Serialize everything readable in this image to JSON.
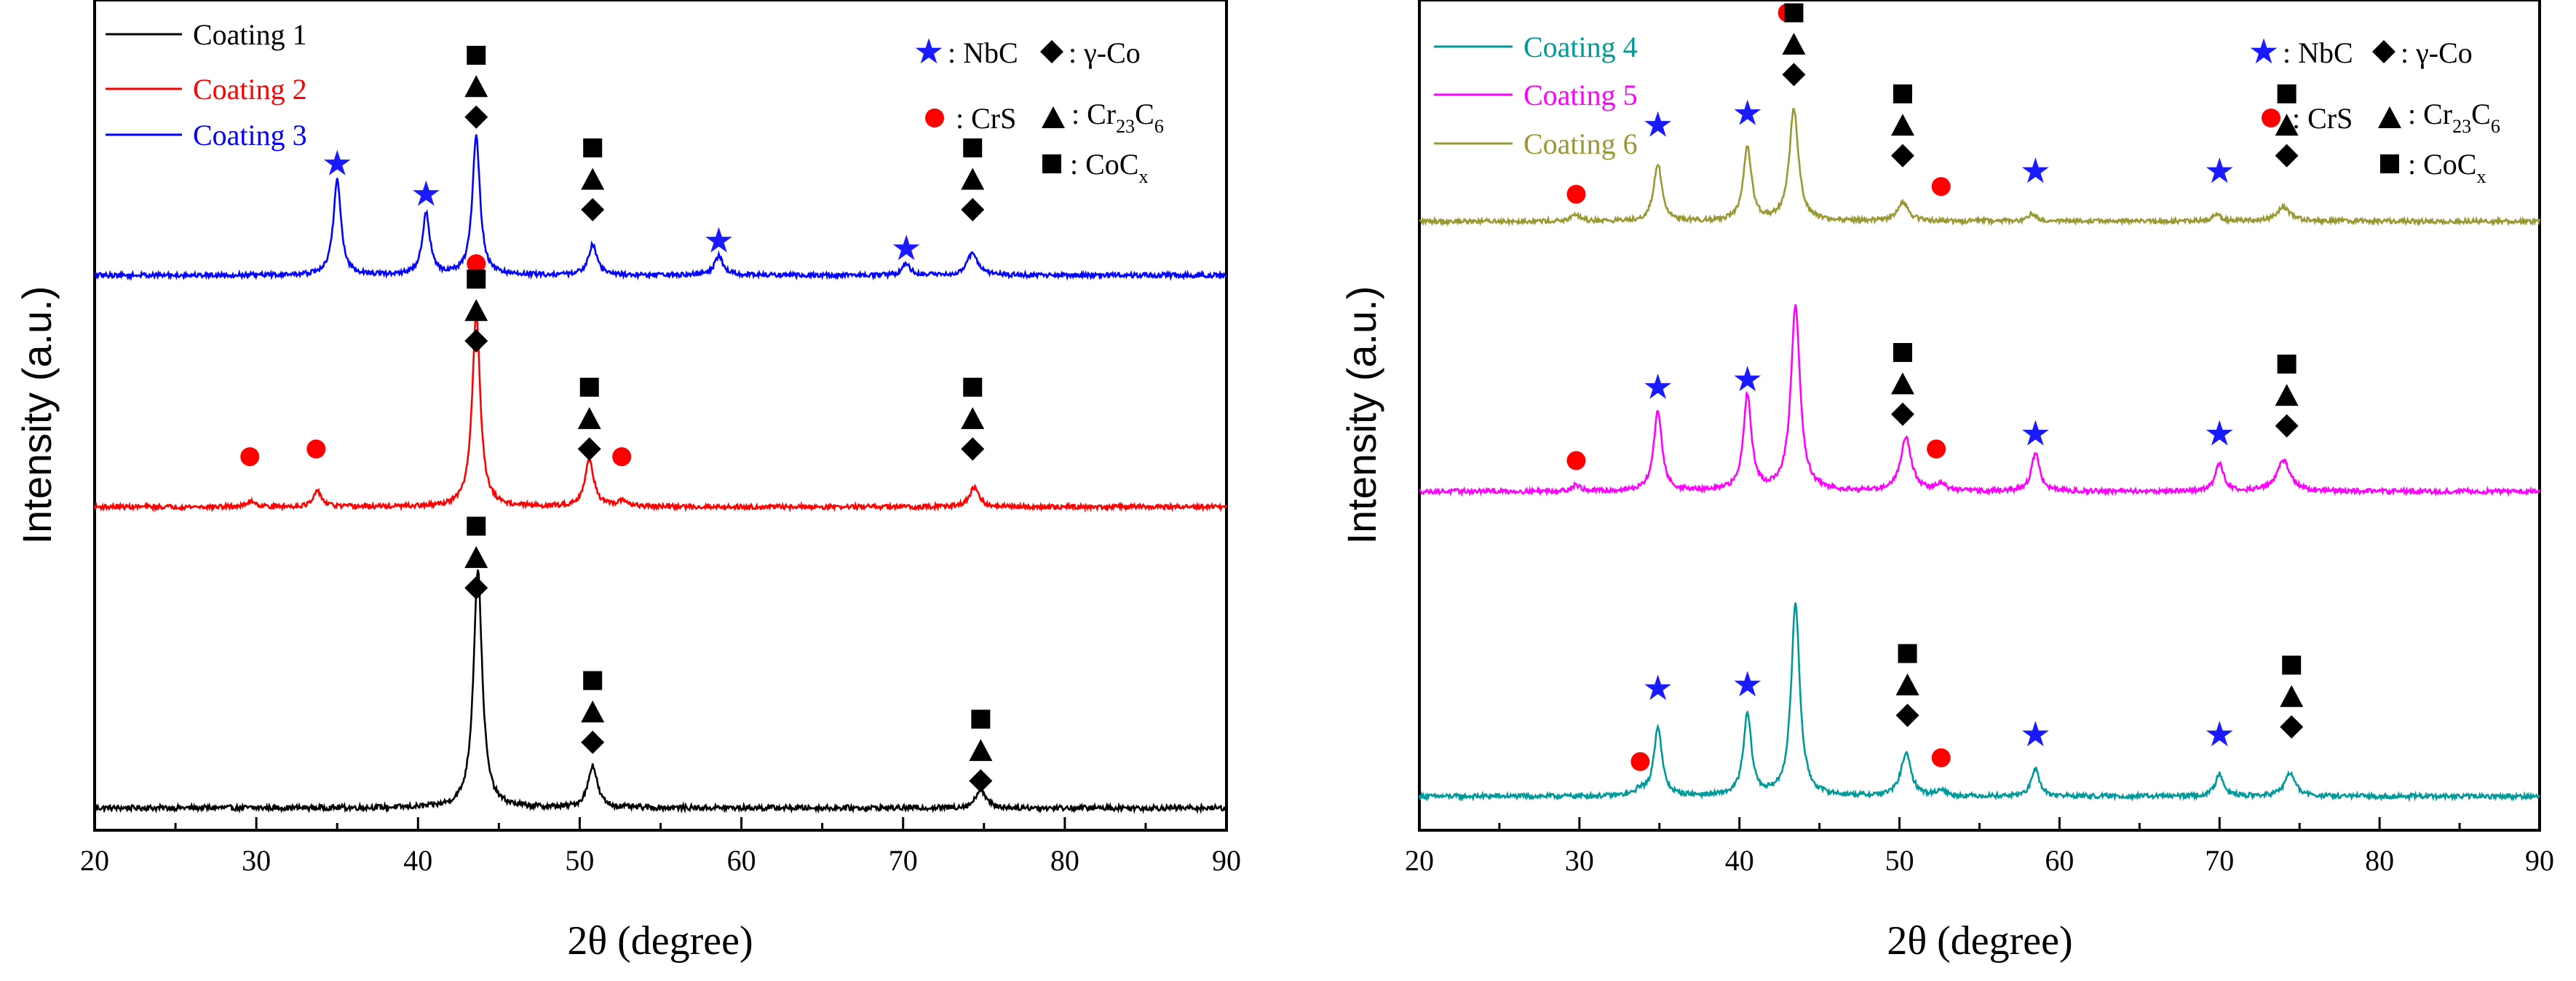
{
  "legend_text": {
    "nbc": ": NbC",
    "gco": ": γ-Co",
    "crs": ": CrS",
    "cr_prefix": ": Cr",
    "cr_sub1": "23",
    "cr_mid": "C",
    "cr_sub2": "6",
    "co_prefix": ": CoC",
    "co_sub": "x"
  },
  "chart_data": [
    {
      "type": "line",
      "panel": "left",
      "title": "",
      "xlabel": "2θ (degree)",
      "ylabel": "Intensity (a.u.)",
      "xlim": [
        20,
        90
      ],
      "ylim": [
        0,
        100
      ],
      "xticks": [
        20,
        30,
        40,
        50,
        60,
        70,
        80,
        90
      ],
      "x_tick_labels": [
        "20",
        "30",
        "40",
        "50",
        "60",
        "70",
        "80",
        "90"
      ],
      "y_ticks_shown": false,
      "legend_position": "top-left",
      "phase_legend_position": "top-right",
      "series": [
        {
          "name": "Coating 1",
          "color": "#000000",
          "baseline": 1.0,
          "noise": 0.35,
          "peaks": [
            {
              "x": 43.7,
              "height": 31,
              "width": 0.32
            },
            {
              "x": 50.8,
              "height": 5.5,
              "width": 0.34
            },
            {
              "x": 74.8,
              "height": 2.5,
              "width": 0.35
            }
          ]
        },
        {
          "name": "Coating 2",
          "color": "#ff0000",
          "baseline": 40.0,
          "noise": 0.3,
          "peaks": [
            {
              "x": 29.7,
              "height": 0.8,
              "width": 0.3
            },
            {
              "x": 33.8,
              "height": 2.0,
              "width": 0.3
            },
            {
              "x": 43.6,
              "height": 25,
              "width": 0.3
            },
            {
              "x": 50.6,
              "height": 6.0,
              "width": 0.34
            },
            {
              "x": 52.7,
              "height": 0.8,
              "width": 0.3
            },
            {
              "x": 74.4,
              "height": 2.5,
              "width": 0.34
            }
          ]
        },
        {
          "name": "Coating 3",
          "color": "#0000ff",
          "baseline": 70.0,
          "noise": 0.3,
          "peaks": [
            {
              "x": 35.0,
              "height": 12.5,
              "width": 0.28
            },
            {
              "x": 40.5,
              "height": 8.0,
              "width": 0.28
            },
            {
              "x": 43.6,
              "height": 18,
              "width": 0.28
            },
            {
              "x": 50.8,
              "height": 4.0,
              "width": 0.32
            },
            {
              "x": 58.6,
              "height": 2.5,
              "width": 0.32
            },
            {
              "x": 70.2,
              "height": 1.5,
              "width": 0.3
            },
            {
              "x": 74.3,
              "height": 3.0,
              "width": 0.38
            }
          ]
        }
      ],
      "phase_markers": [
        {
          "phase": "NbC",
          "symbol": "star",
          "color": "#1a1aff",
          "points": [
            [
              35.0,
              84.5
            ],
            [
              40.5,
              80.5
            ],
            [
              58.6,
              74.5
            ],
            [
              70.2,
              73.5
            ]
          ]
        },
        {
          "phase": "CrS",
          "symbol": "circle",
          "color": "#ff0000",
          "points": [
            [
              29.6,
              46.5
            ],
            [
              33.7,
              47.5
            ],
            [
              43.6,
              71.5
            ],
            [
              52.6,
              46.5
            ]
          ]
        },
        {
          "phase": "γ-Co",
          "symbol": "diamond",
          "color": "#000000",
          "points": [
            [
              43.6,
              90.5
            ],
            [
              50.8,
              78.5
            ],
            [
              74.3,
              78.5
            ],
            [
              43.6,
              61.5
            ],
            [
              50.6,
              47.5
            ],
            [
              74.3,
              47.5
            ],
            [
              43.6,
              29.5
            ],
            [
              50.8,
              9.5
            ],
            [
              74.8,
              4.5
            ]
          ]
        },
        {
          "phase": "Cr23C6",
          "symbol": "triangle",
          "color": "#000000",
          "points": [
            [
              43.6,
              94.5
            ],
            [
              50.8,
              82.5
            ],
            [
              74.3,
              82.5
            ],
            [
              43.6,
              65.5
            ],
            [
              50.6,
              51.5
            ],
            [
              74.3,
              51.5
            ],
            [
              43.6,
              33.5
            ],
            [
              50.8,
              13.5
            ],
            [
              74.8,
              8.5
            ]
          ]
        },
        {
          "phase": "CoCx",
          "symbol": "square",
          "color": "#000000",
          "points": [
            [
              43.6,
              98.5
            ],
            [
              50.8,
              86.5
            ],
            [
              74.3,
              86.5
            ],
            [
              43.6,
              69.5
            ],
            [
              50.6,
              55.5
            ],
            [
              74.3,
              55.5
            ],
            [
              43.6,
              37.5
            ],
            [
              50.8,
              17.5
            ],
            [
              74.8,
              12.5
            ]
          ]
        }
      ]
    },
    {
      "type": "line",
      "panel": "right",
      "title": "",
      "xlabel": "2θ (degree)",
      "ylabel": "Intensity (a.u.)",
      "xlim": [
        20,
        90
      ],
      "ylim": [
        0,
        100
      ],
      "xticks": [
        20,
        30,
        40,
        50,
        60,
        70,
        80,
        90
      ],
      "x_tick_labels": [
        "20",
        "30",
        "40",
        "50",
        "60",
        "70",
        "80",
        "90"
      ],
      "y_ticks_shown": false,
      "legend_position": "top-left",
      "phase_legend_position": "top-right",
      "series": [
        {
          "name": "Coating 4",
          "color": "#009999",
          "baseline": 2.5,
          "noise": 0.3,
          "peaks": [
            {
              "x": 33.8,
              "height": 0.8,
              "width": 0.3
            },
            {
              "x": 34.9,
              "height": 9.0,
              "width": 0.3
            },
            {
              "x": 40.5,
              "height": 10.5,
              "width": 0.3
            },
            {
              "x": 43.5,
              "height": 25,
              "width": 0.32
            },
            {
              "x": 50.4,
              "height": 5.5,
              "width": 0.38
            },
            {
              "x": 52.6,
              "height": 0.8,
              "width": 0.3
            },
            {
              "x": 58.5,
              "height": 3.5,
              "width": 0.3
            },
            {
              "x": 70.0,
              "height": 3.0,
              "width": 0.3
            },
            {
              "x": 74.4,
              "height": 3.0,
              "width": 0.4
            }
          ]
        },
        {
          "name": "Coating 5",
          "color": "#ff00ff",
          "baseline": 42.0,
          "noise": 0.3,
          "peaks": [
            {
              "x": 29.8,
              "height": 0.8,
              "width": 0.3
            },
            {
              "x": 34.9,
              "height": 10.5,
              "width": 0.3
            },
            {
              "x": 40.5,
              "height": 12.5,
              "width": 0.3
            },
            {
              "x": 43.5,
              "height": 24,
              "width": 0.34
            },
            {
              "x": 50.4,
              "height": 7.0,
              "width": 0.4
            },
            {
              "x": 52.6,
              "height": 1.0,
              "width": 0.3
            },
            {
              "x": 58.5,
              "height": 5.0,
              "width": 0.3
            },
            {
              "x": 70.0,
              "height": 3.5,
              "width": 0.32
            },
            {
              "x": 74.0,
              "height": 4.0,
              "width": 0.5
            }
          ]
        },
        {
          "name": "Coating 6",
          "color": "#999933",
          "baseline": 77.0,
          "noise": 0.3,
          "peaks": [
            {
              "x": 29.8,
              "height": 0.8,
              "width": 0.3
            },
            {
              "x": 34.9,
              "height": 7.5,
              "width": 0.3
            },
            {
              "x": 40.5,
              "height": 9.5,
              "width": 0.3
            },
            {
              "x": 43.4,
              "height": 14.5,
              "width": 0.34
            },
            {
              "x": 50.2,
              "height": 2.5,
              "width": 0.4
            },
            {
              "x": 58.3,
              "height": 1.0,
              "width": 0.3
            },
            {
              "x": 69.8,
              "height": 1.0,
              "width": 0.3
            },
            {
              "x": 74.0,
              "height": 1.8,
              "width": 0.5
            }
          ]
        }
      ],
      "phase_markers": [
        {
          "phase": "NbC",
          "symbol": "star",
          "color": "#1a1aff",
          "points": [
            [
              34.9,
              16.5
            ],
            [
              40.5,
              17.0
            ],
            [
              58.5,
              10.5
            ],
            [
              70.0,
              10.5
            ],
            [
              34.9,
              55.5
            ],
            [
              40.5,
              56.5
            ],
            [
              58.5,
              49.5
            ],
            [
              70.0,
              49.5
            ],
            [
              34.9,
              89.5
            ],
            [
              40.5,
              91.0
            ],
            [
              58.5,
              83.5
            ],
            [
              70.0,
              83.5
            ]
          ]
        },
        {
          "phase": "CrS",
          "symbol": "circle",
          "color": "#ff0000",
          "points": [
            [
              33.8,
              7.0
            ],
            [
              52.6,
              7.5
            ],
            [
              29.8,
              46.0
            ],
            [
              52.3,
              47.5
            ],
            [
              29.8,
              80.5
            ],
            [
              52.6,
              81.5
            ],
            [
              43.0,
              104.0
            ]
          ]
        },
        {
          "phase": "γ-Co",
          "symbol": "diamond",
          "color": "#000000",
          "points": [
            [
              50.5,
              13.0
            ],
            [
              74.5,
              11.5
            ],
            [
              50.2,
              52.0
            ],
            [
              74.2,
              50.5
            ],
            [
              43.4,
              96.0
            ],
            [
              50.2,
              85.5
            ],
            [
              74.2,
              85.5
            ]
          ]
        },
        {
          "phase": "Cr23C6",
          "symbol": "triangle",
          "color": "#000000",
          "points": [
            [
              50.5,
              17.0
            ],
            [
              74.5,
              15.5
            ],
            [
              50.2,
              56.0
            ],
            [
              74.2,
              54.5
            ],
            [
              43.4,
              100.0
            ],
            [
              50.2,
              89.5
            ],
            [
              74.2,
              89.5
            ]
          ]
        },
        {
          "phase": "CoCx",
          "symbol": "square",
          "color": "#000000",
          "points": [
            [
              50.5,
              21.0
            ],
            [
              74.5,
              19.5
            ],
            [
              50.2,
              60.0
            ],
            [
              74.2,
              58.5
            ],
            [
              43.4,
              104.0
            ],
            [
              50.2,
              93.5
            ],
            [
              74.2,
              93.5
            ]
          ]
        }
      ]
    }
  ]
}
